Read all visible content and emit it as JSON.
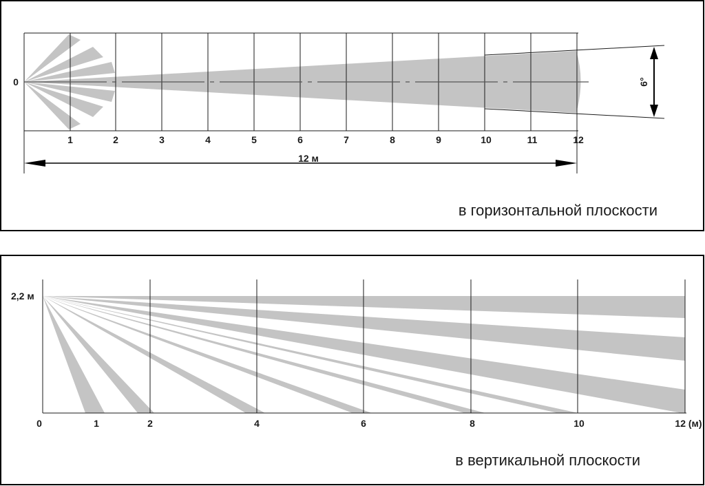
{
  "horizontal": {
    "origin_label": "0",
    "x_ticks": [
      "1",
      "2",
      "3",
      "4",
      "5",
      "6",
      "7",
      "8",
      "9",
      "10",
      "11",
      "12"
    ],
    "range_label": "12 м",
    "angle_label": "6°",
    "caption": "в горизонтальной плоскости"
  },
  "vertical": {
    "height_label": "2,2 м",
    "x_ticks": [
      "0",
      "1",
      "2",
      "4",
      "6",
      "8",
      "10",
      "12 (м)"
    ],
    "caption": "в вертикальной плоскости"
  },
  "colors": {
    "beam": "#c4c4c4",
    "line": "#1a1a1a",
    "frame": "#000000"
  }
}
